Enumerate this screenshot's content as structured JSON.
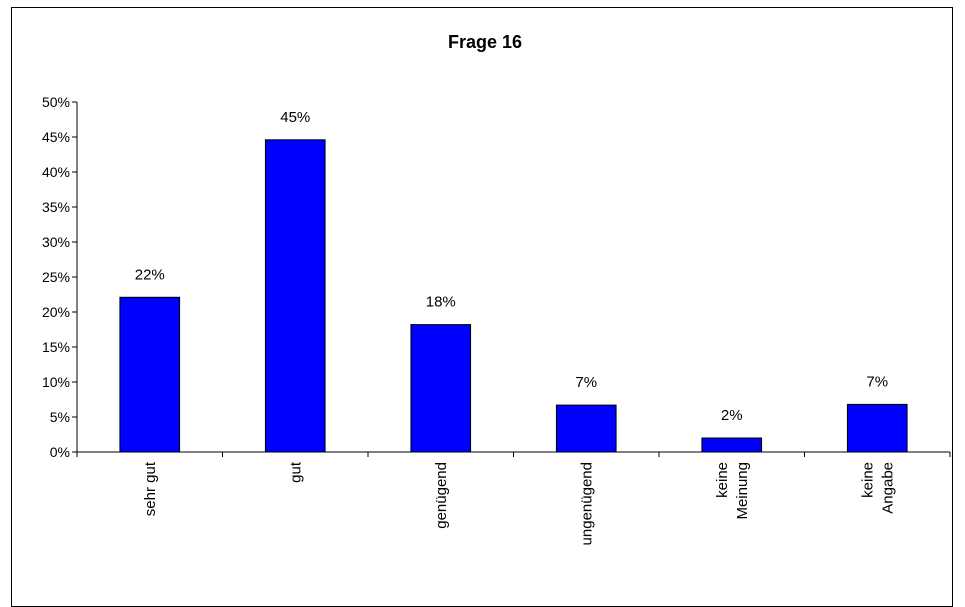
{
  "chart_data": {
    "type": "bar",
    "title": "Frage 16",
    "xlabel": "",
    "ylabel": "",
    "categories": [
      [
        "sehr gut"
      ],
      [
        "gut"
      ],
      [
        "genügend"
      ],
      [
        "ungenügend"
      ],
      [
        "keine",
        "Meinung"
      ],
      [
        "keine",
        "Angabe"
      ]
    ],
    "values": [
      22.1,
      44.6,
      18.2,
      6.7,
      2.0,
      6.8
    ],
    "data_labels": [
      "22%",
      "45%",
      "18%",
      "7%",
      "2%",
      "7%"
    ],
    "ylim": [
      0,
      50
    ],
    "yticks": [
      "0%",
      "5%",
      "10%",
      "15%",
      "20%",
      "25%",
      "30%",
      "35%",
      "40%",
      "45%",
      "50%"
    ],
    "grid": false,
    "legend": "none",
    "bar_color": "#0000FF"
  }
}
